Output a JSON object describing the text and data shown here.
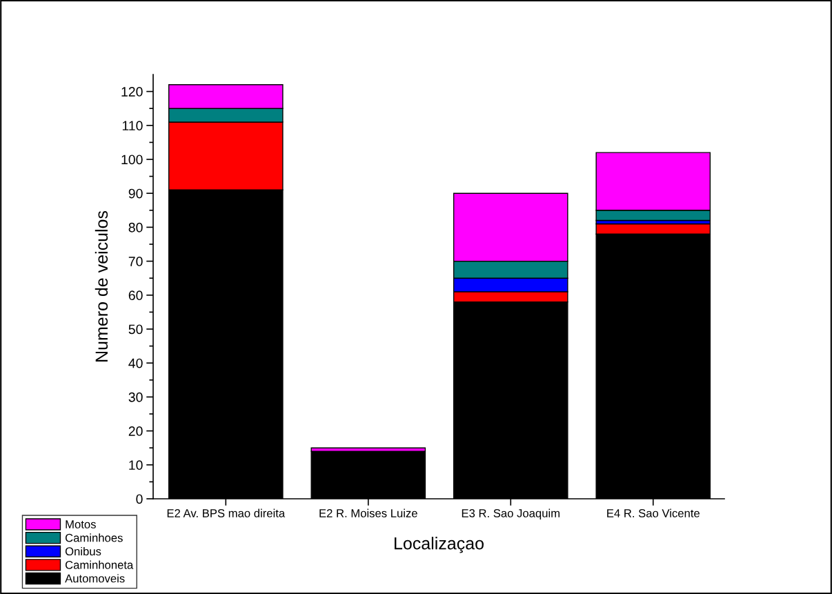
{
  "chart_data": {
    "type": "bar",
    "stacked": true,
    "xlabel": "Localizaçao",
    "ylabel": "Numero de veiculos",
    "categories": [
      "E2 Av. BPS mao direita",
      "E2 R. Moises Luize",
      "E3 R. Sao Joaquim",
      "E4 R. Sao Vicente"
    ],
    "series": [
      {
        "name": "Automoveis",
        "color": "#000000",
        "values": [
          91,
          14,
          58,
          78
        ]
      },
      {
        "name": "Caminhoneta",
        "color": "#ff0000",
        "values": [
          20,
          0,
          3,
          3
        ]
      },
      {
        "name": "Onibus",
        "color": "#0000ff",
        "values": [
          0,
          0,
          4,
          1
        ]
      },
      {
        "name": "Caminhoes",
        "color": "#008080",
        "values": [
          4,
          0,
          5,
          3
        ]
      },
      {
        "name": "Motos",
        "color": "#ff00ff",
        "values": [
          7,
          1,
          20,
          17
        ]
      }
    ],
    "ylim": [
      0,
      125
    ],
    "yticks": [
      0,
      {
        "value": 5,
        "label": null
      },
      10,
      {
        "value": 15,
        "label": null
      },
      20,
      {
        "value": 25,
        "label": null
      },
      30,
      {
        "value": 35,
        "label": null
      },
      40,
      {
        "value": 45,
        "label": null
      },
      50,
      {
        "value": 55,
        "label": null
      },
      60,
      {
        "value": 65,
        "label": null
      },
      70,
      {
        "value": 75,
        "label": null
      },
      80,
      {
        "value": 85,
        "label": null
      },
      90,
      {
        "value": 95,
        "label": null
      },
      100,
      {
        "value": 105,
        "label": null
      },
      110,
      {
        "value": 115,
        "label": null
      },
      120
    ],
    "grid": false,
    "legend": "bottom left"
  }
}
